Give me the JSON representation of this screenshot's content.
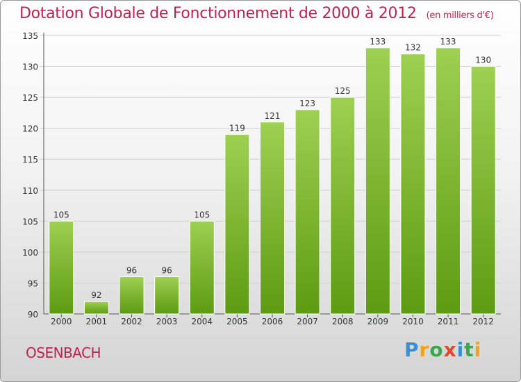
{
  "title": "Dotation Globale de Fonctionnement de 2000 à 2012",
  "unit": "(en milliers d'€)",
  "commune": "OSENBACH",
  "logo": "Proxiti",
  "colors": {
    "title": "#c0224f",
    "bar_top": "#9ed051",
    "bar_bottom": "#5d9b12"
  },
  "chart_data": {
    "type": "bar",
    "categories": [
      "2000",
      "2001",
      "2002",
      "2003",
      "2004",
      "2005",
      "2006",
      "2007",
      "2008",
      "2009",
      "2010",
      "2011",
      "2012"
    ],
    "values": [
      105,
      92,
      96,
      96,
      105,
      119,
      121,
      123,
      125,
      133,
      132,
      133,
      130
    ],
    "ylim": [
      90,
      135
    ],
    "yticks": [
      90,
      95,
      100,
      105,
      110,
      115,
      120,
      125,
      130,
      135
    ],
    "grid": true,
    "data_labels": true
  }
}
